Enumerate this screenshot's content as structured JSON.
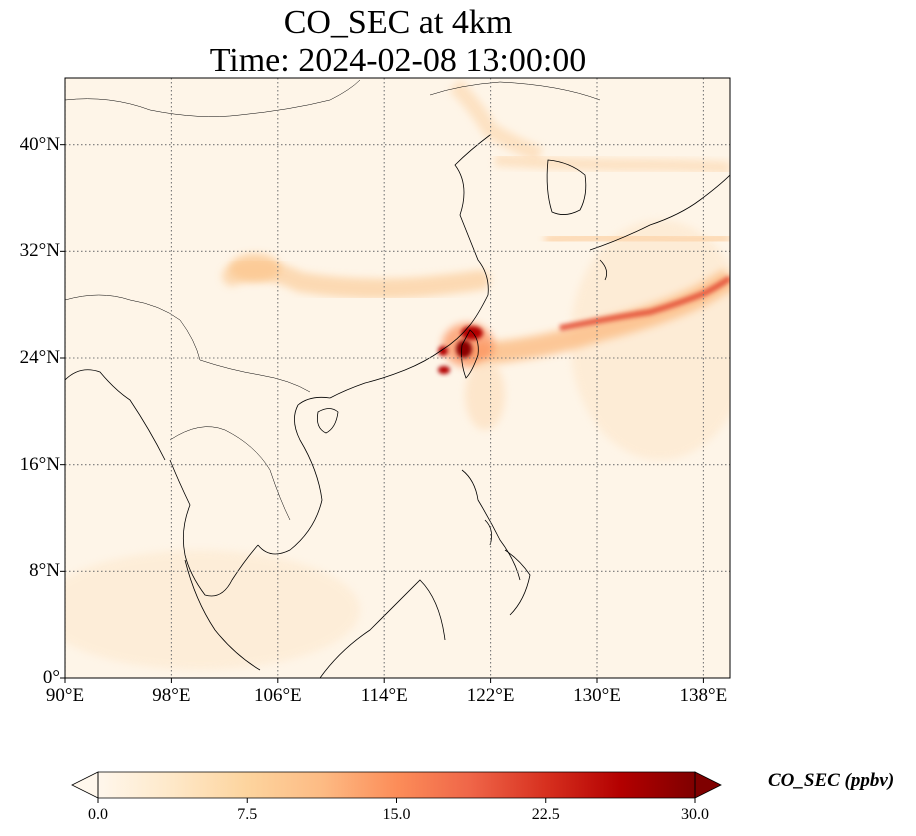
{
  "title": {
    "line1": "CO_SEC at 4km",
    "line2": "Time: 2024-02-08 13:00:00"
  },
  "map": {
    "lon_range": [
      90,
      140
    ],
    "lat_range": [
      0,
      45
    ],
    "lon_ticks": [
      {
        "value": 90,
        "label": "90°E"
      },
      {
        "value": 98,
        "label": "98°E"
      },
      {
        "value": 106,
        "label": "106°E"
      },
      {
        "value": 114,
        "label": "114°E"
      },
      {
        "value": 122,
        "label": "122°E"
      },
      {
        "value": 130,
        "label": "130°E"
      },
      {
        "value": 138,
        "label": "138°E"
      }
    ],
    "lat_ticks": [
      {
        "value": 0,
        "label": "0°"
      },
      {
        "value": 8,
        "label": "8°N"
      },
      {
        "value": 16,
        "label": "16°N"
      },
      {
        "value": 24,
        "label": "24°N"
      },
      {
        "value": 32,
        "label": "32°N"
      },
      {
        "value": 40,
        "label": "40°N"
      }
    ],
    "gridlines": true,
    "colormap": "OrRd"
  },
  "colorbar": {
    "label": "CO_SEC (ppbv)",
    "range": [
      0,
      30
    ],
    "extend": "both",
    "ticks": [
      "0.0",
      "7.5",
      "15.0",
      "22.5",
      "30.0"
    ],
    "colors": [
      "#fff7ec",
      "#fee8c8",
      "#fdd49e",
      "#fdbb84",
      "#fc8d59",
      "#ef6548",
      "#d7301f",
      "#b30000",
      "#7f0000"
    ]
  },
  "chart_data": {
    "type": "heatmap",
    "variable": "CO_SEC at 4km",
    "units": "ppbv",
    "x_range": [
      90,
      140
    ],
    "y_range": [
      0,
      45
    ],
    "features": [
      {
        "lon": 121,
        "lat": 24.5,
        "value": 30
      },
      {
        "lon": 120.5,
        "lat": 25.8,
        "value": 26
      },
      {
        "lon": 118.5,
        "lat": 23,
        "value": 24
      },
      {
        "lon": 118,
        "lat": 24.5,
        "value": 20
      },
      {
        "lon": 130,
        "lat": 26,
        "value": 12
      },
      {
        "lon": 136.5,
        "lat": 28.5,
        "value": 20
      },
      {
        "lon": 105,
        "lat": 30,
        "value": 6
      },
      {
        "lon": 112,
        "lat": 29,
        "value": 5
      },
      {
        "lon": 131,
        "lat": 38,
        "value": 4
      },
      {
        "lon": 121,
        "lat": 41.5,
        "value": 3
      }
    ]
  }
}
